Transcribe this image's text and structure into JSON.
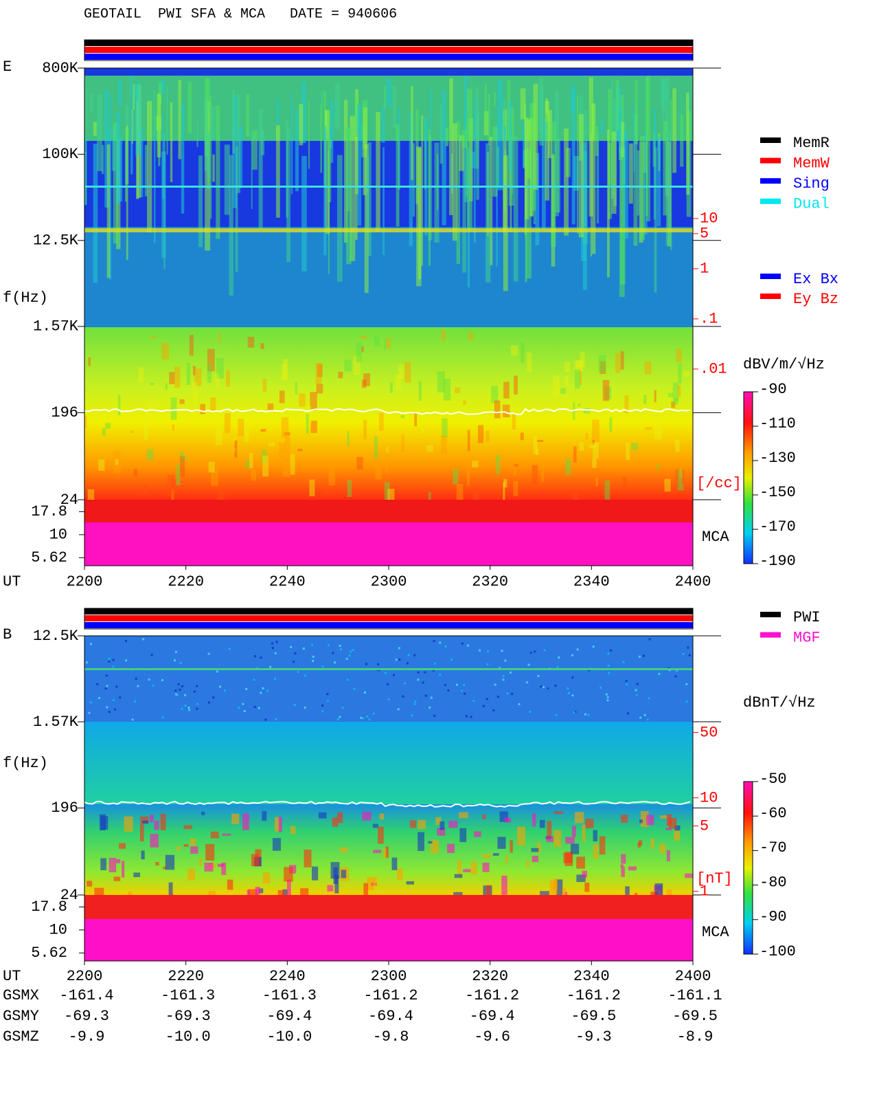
{
  "title": "GEOTAIL  PWI SFA & MCA   DATE = 940606",
  "chart_data": [
    {
      "type": "spectrogram",
      "panel_label": "E",
      "ylabel": "f(Hz)",
      "xlabel": "UT",
      "log_y": true,
      "ylim": [
        24,
        800000
      ],
      "yticks": [
        {
          "value": 800000,
          "label": "800K"
        },
        {
          "value": 100000,
          "label": "100K"
        },
        {
          "value": 12500,
          "label": "12.5K"
        },
        {
          "value": 1570,
          "label": "1.57K"
        },
        196,
        24
      ],
      "mca_label": "MCA",
      "mca_ylim": [
        4.6,
        24
      ],
      "mca_yticks": [
        17.8,
        10,
        5.62
      ],
      "y2lim": [
        1.2e-06,
        10000
      ],
      "y2ticks": [
        10,
        5,
        1,
        {
          "value": 0.1,
          "label": ".1"
        },
        {
          "value": 0.01,
          "label": ".01"
        }
      ],
      "y2label": "[/cc]",
      "y2color": "#ff0000",
      "xticks": [
        "2200",
        "2220",
        "2240",
        "2300",
        "2320",
        "2340",
        "2400"
      ],
      "colorbar": {
        "label": "dBV/m/√Hz",
        "clim": [
          -190,
          -90
        ],
        "ticks": [
          -90,
          -110,
          -130,
          -150,
          -170,
          -190
        ]
      },
      "status_legend": [
        {
          "name": "MemR",
          "color": "#000000"
        },
        {
          "name": "MemW",
          "color": "#ff0000"
        },
        {
          "name": "Sing",
          "color": "#0000ff"
        },
        {
          "name": "Dual",
          "color": "#00e8f0"
        }
      ],
      "component_legend": [
        {
          "name": "Ex Bx",
          "color": "#0000ff"
        },
        {
          "name": "Ey Bz",
          "color": "#ff0000"
        }
      ]
    },
    {
      "type": "spectrogram",
      "panel_label": "B",
      "ylabel": "f(Hz)",
      "xlabel": "UT",
      "log_y": true,
      "ylim": [
        24,
        12500
      ],
      "yticks": [
        {
          "value": 12500,
          "label": "12.5K"
        },
        {
          "value": 1570,
          "label": "1.57K"
        },
        196,
        24
      ],
      "mca_label": "MCA",
      "mca_ylim": [
        4.6,
        24
      ],
      "mca_yticks": [
        17.8,
        10,
        5.62
      ],
      "y2lim": [
        0.18,
        540
      ],
      "y2ticks": [
        50,
        10,
        5,
        1
      ],
      "y2label": "[nT]",
      "y2color": "#ff0000",
      "xticks": [
        "2200",
        "2220",
        "2240",
        "2300",
        "2320",
        "2340",
        "2400"
      ],
      "colorbar": {
        "label": "dBnT/√Hz",
        "clim": [
          -100,
          -50
        ],
        "ticks": [
          -50,
          -60,
          -70,
          -80,
          -90,
          -100
        ]
      },
      "status_legend": [
        {
          "name": "PWI",
          "color": "#000000"
        },
        {
          "name": "MGF",
          "color": "#ff10d0"
        }
      ]
    }
  ],
  "orbit": {
    "rows": [
      {
        "name": "GSMX",
        "values": [
          "-161.4",
          "-161.3",
          "-161.3",
          "-161.2",
          "-161.2",
          "-161.2",
          "-161.1"
        ]
      },
      {
        "name": "GSMY",
        "values": [
          "-69.3",
          "-69.3",
          "-69.4",
          "-69.4",
          "-69.4",
          "-69.5",
          "-69.5"
        ]
      },
      {
        "name": "GSMZ",
        "values": [
          "-9.9",
          "-10.0",
          "-10.0",
          "-9.8",
          "-9.6",
          "-9.3",
          "-8.9"
        ]
      }
    ]
  }
}
